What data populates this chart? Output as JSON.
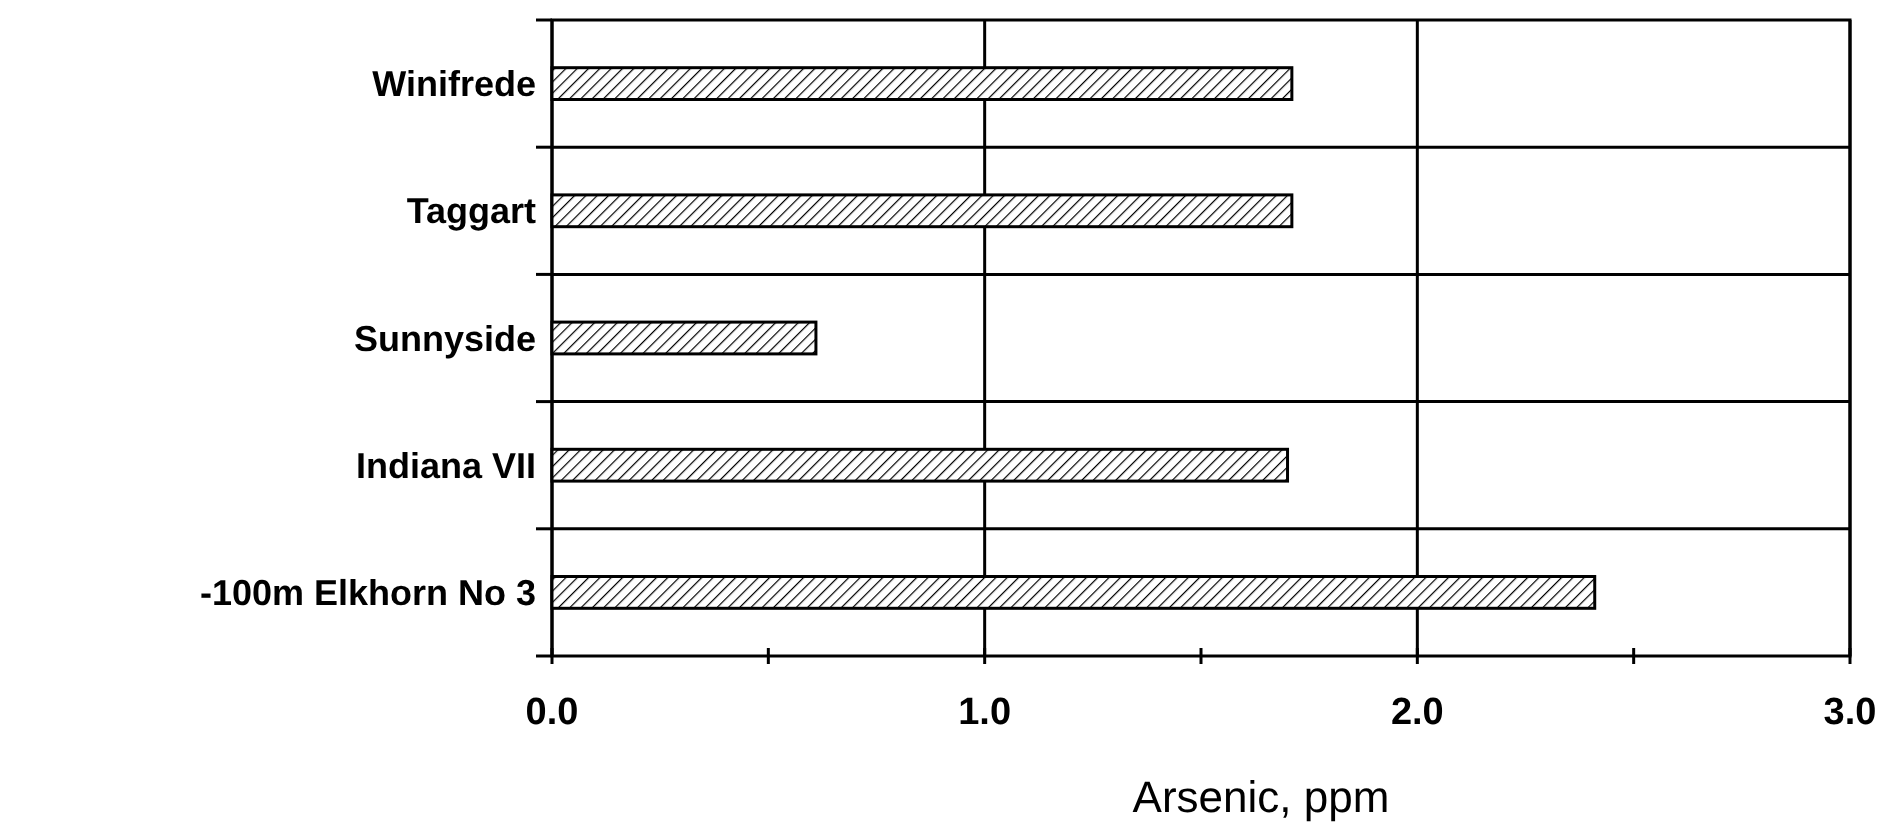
{
  "chart_data": {
    "type": "bar",
    "orientation": "horizontal",
    "xlabel": "Arsenic, ppm",
    "categories": [
      "Winifrede",
      "Taggart",
      "Sunnyside",
      "Indiana VII",
      "-100m Elkhorn No 3"
    ],
    "values": [
      1.71,
      1.71,
      0.61,
      1.7,
      2.41
    ],
    "color": "#000000",
    "xlim": [
      0,
      3
    ],
    "xticks": [
      {
        "value": 0,
        "label": "0.0"
      },
      {
        "value": 0.5,
        "label": null
      },
      {
        "value": 1,
        "label": "1.0"
      },
      {
        "value": 1.5,
        "label": null
      },
      {
        "value": 2,
        "label": "2.0"
      },
      {
        "value": 2.5,
        "label": null
      },
      {
        "value": 3,
        "label": "3.0"
      }
    ],
    "grid": true
  }
}
